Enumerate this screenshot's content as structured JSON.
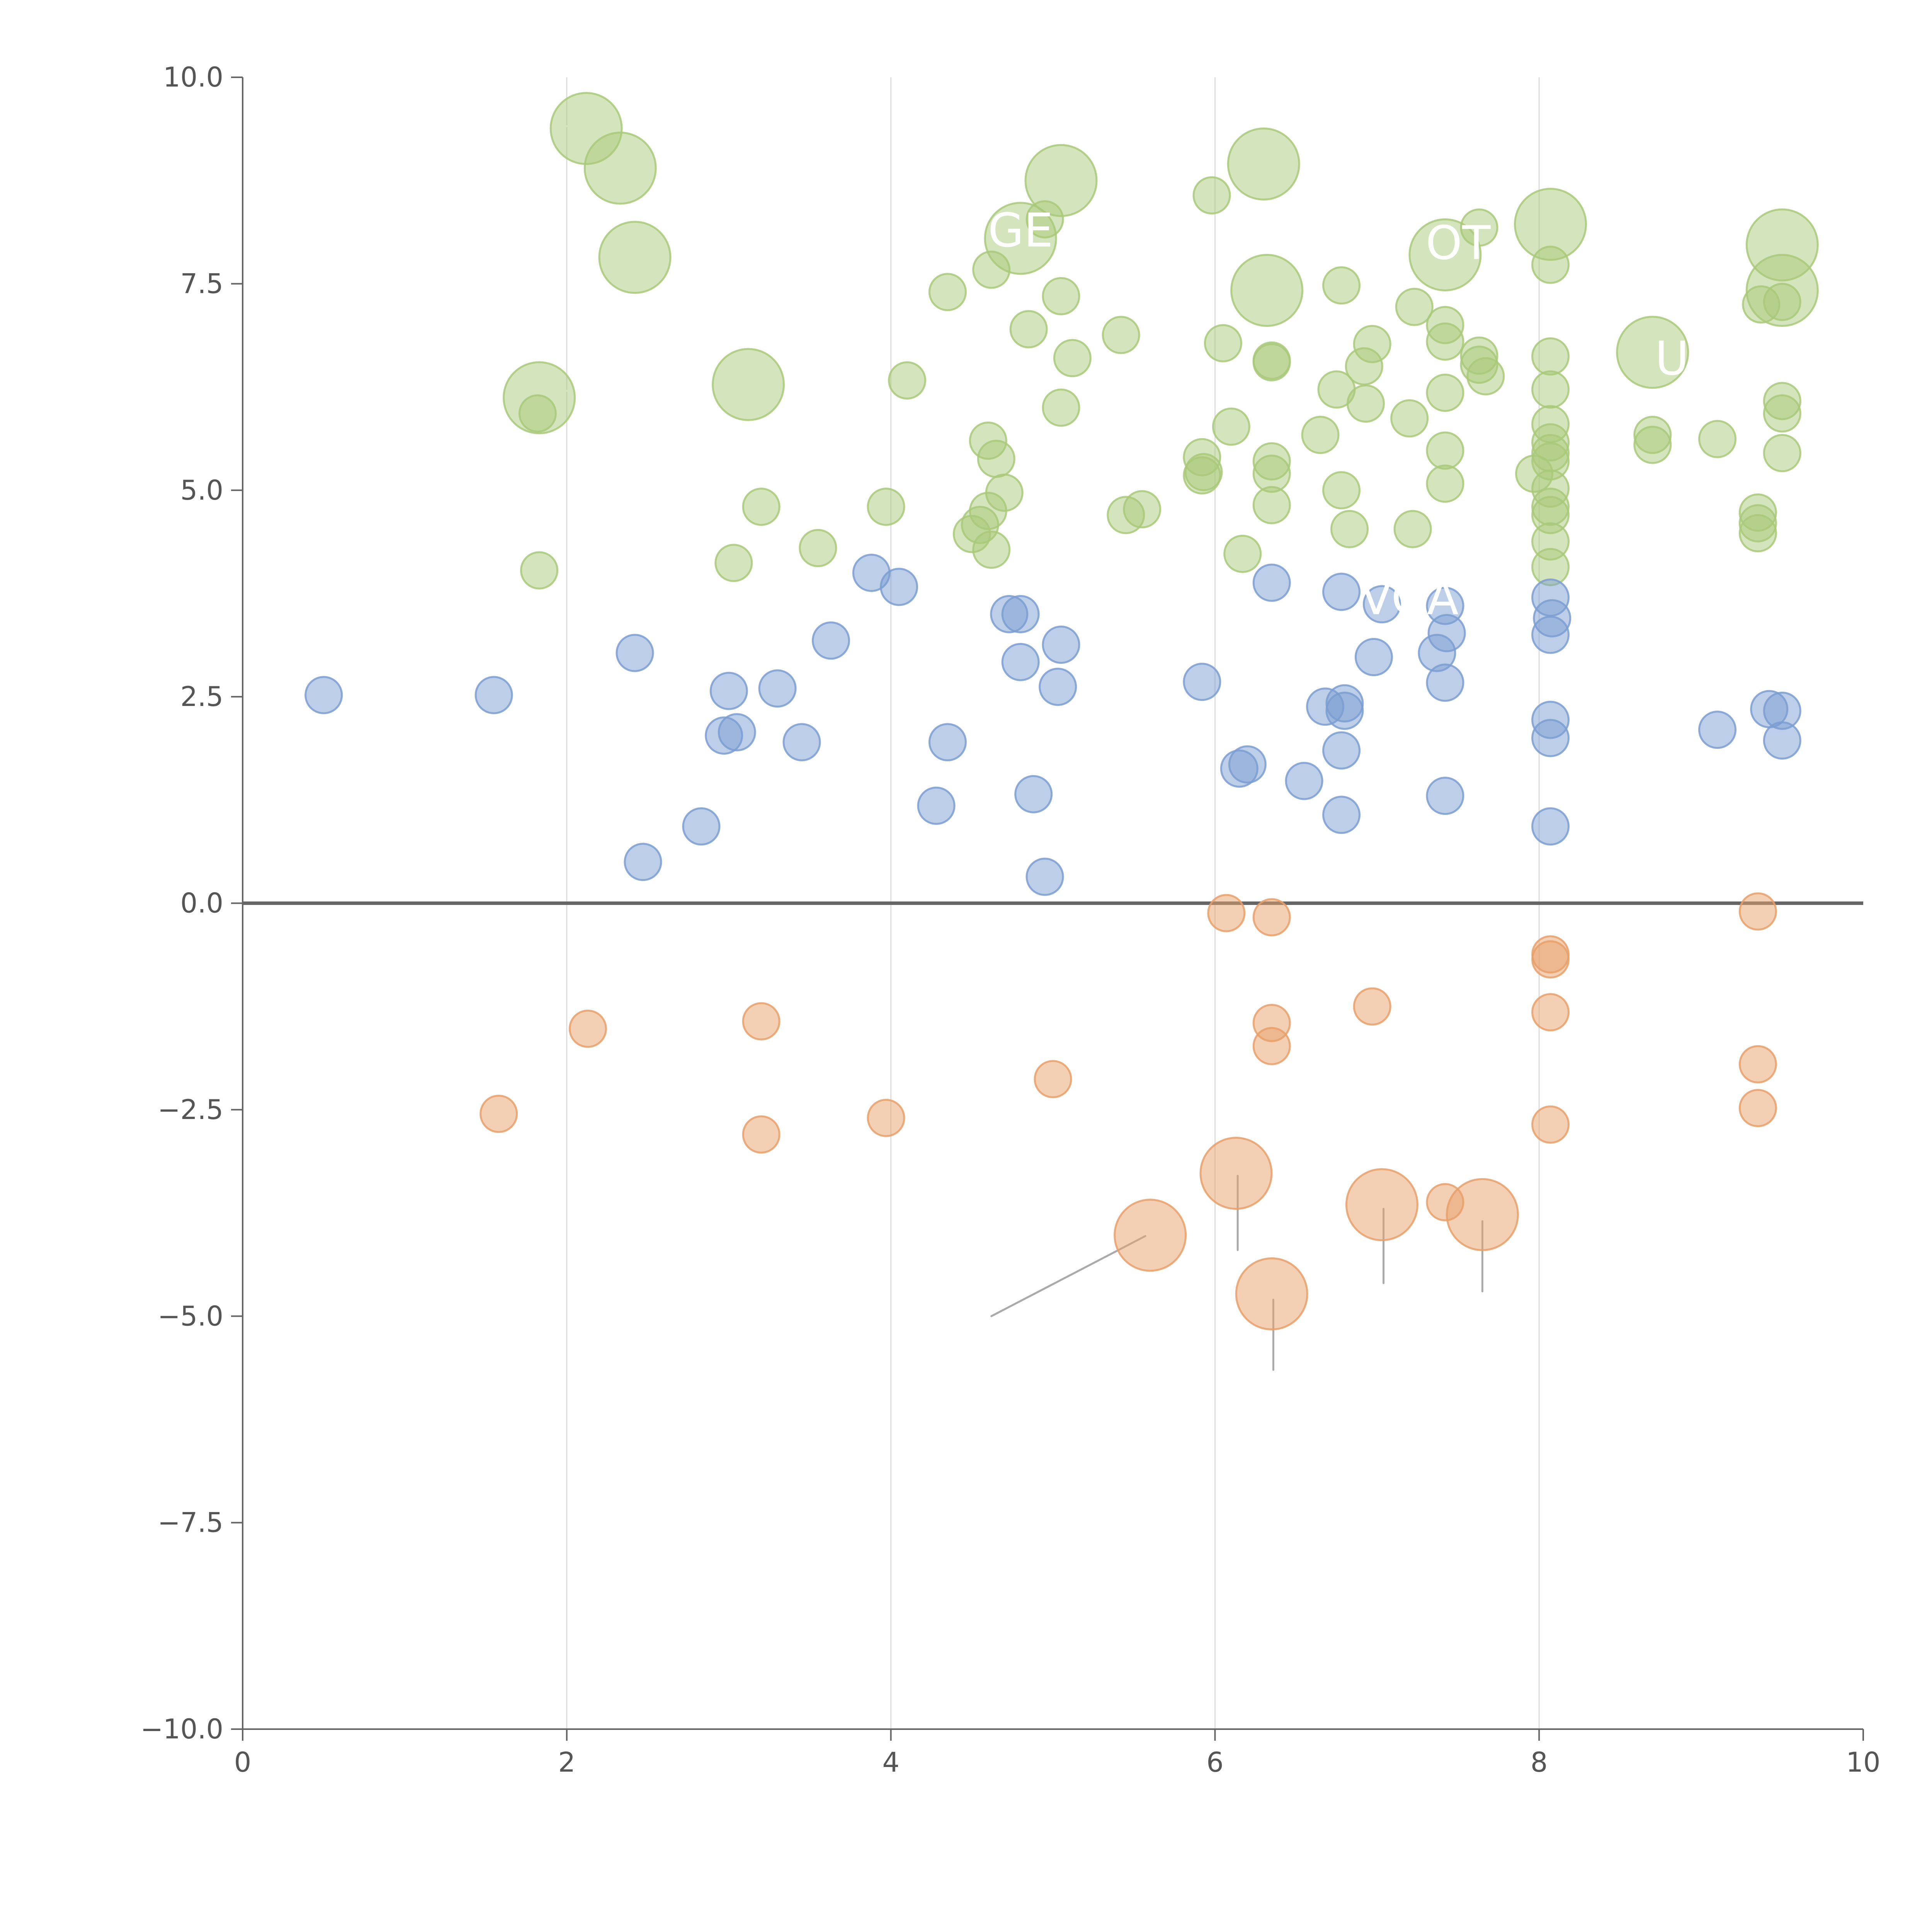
{
  "chart_data": {
    "type": "scatter",
    "title": "",
    "xlabel": "",
    "ylabel": "",
    "xlim": [
      0,
      10
    ],
    "ylim": [
      -10,
      10
    ],
    "x_ticks": [
      0,
      2,
      4,
      6,
      8,
      10
    ],
    "x_tick_labels": [
      "0",
      "2",
      "4",
      "6",
      "8",
      "10"
    ],
    "y_ticks": [
      -10,
      -7.5,
      -5,
      -2.5,
      0,
      2.5,
      5,
      7.5,
      10
    ],
    "y_tick_labels": [
      "−10.0",
      "−7.5",
      "−5.0",
      "−2.5",
      "0.0",
      "2.5",
      "5.0",
      "7.5",
      "10.0"
    ],
    "vertical_gridlines": [
      2,
      4,
      6,
      8
    ],
    "zero_line": 0,
    "colors": {
      "green": "#a9c97a",
      "blue": "#7b9dd1",
      "orange": "#e8a06a",
      "axis": "#666666",
      "grid": "#dddddd",
      "leader": "#aaaaaa",
      "label": "#ffffff"
    },
    "series": [
      {
        "name": "green",
        "color": "#a9c97a",
        "points": [
          {
            "x": 2.12,
            "y": 9.38,
            "size": 3
          },
          {
            "x": 2.33,
            "y": 8.9,
            "size": 3
          },
          {
            "x": 2.42,
            "y": 7.82,
            "size": 3
          },
          {
            "x": 1.83,
            "y": 6.12,
            "size": 3
          },
          {
            "x": 1.82,
            "y": 5.93,
            "size": 1
          },
          {
            "x": 1.83,
            "y": 4.03,
            "size": 1
          },
          {
            "x": 3.12,
            "y": 6.28,
            "size": 3
          },
          {
            "x": 3.2,
            "y": 4.8,
            "size": 1
          },
          {
            "x": 3.03,
            "y": 4.12,
            "size": 1
          },
          {
            "x": 3.55,
            "y": 4.3,
            "size": 1
          },
          {
            "x": 3.97,
            "y": 4.8,
            "size": 1
          },
          {
            "x": 4.1,
            "y": 6.33,
            "size": 1
          },
          {
            "x": 4.35,
            "y": 7.4,
            "size": 1
          },
          {
            "x": 4.62,
            "y": 7.67,
            "size": 1
          },
          {
            "x": 4.8,
            "y": 8.05,
            "size": 3
          },
          {
            "x": 4.95,
            "y": 8.28,
            "size": 1
          },
          {
            "x": 5.05,
            "y": 8.75,
            "size": 3
          },
          {
            "x": 5.05,
            "y": 7.35,
            "size": 1
          },
          {
            "x": 4.85,
            "y": 6.95,
            "size": 1
          },
          {
            "x": 5.12,
            "y": 6.6,
            "size": 1
          },
          {
            "x": 5.05,
            "y": 6.0,
            "size": 1
          },
          {
            "x": 5.42,
            "y": 6.88,
            "size": 1
          },
          {
            "x": 4.6,
            "y": 5.6,
            "size": 1
          },
          {
            "x": 4.65,
            "y": 5.38,
            "size": 1
          },
          {
            "x": 4.7,
            "y": 4.97,
            "size": 1
          },
          {
            "x": 4.6,
            "y": 4.75,
            "size": 1
          },
          {
            "x": 4.55,
            "y": 4.58,
            "size": 1
          },
          {
            "x": 4.5,
            "y": 4.47,
            "size": 1
          },
          {
            "x": 4.62,
            "y": 4.28,
            "size": 1
          },
          {
            "x": 5.45,
            "y": 4.7,
            "size": 1
          },
          {
            "x": 5.55,
            "y": 4.77,
            "size": 1
          },
          {
            "x": 5.98,
            "y": 8.57,
            "size": 1
          },
          {
            "x": 6.3,
            "y": 8.95,
            "size": 3
          },
          {
            "x": 6.32,
            "y": 7.42,
            "size": 3
          },
          {
            "x": 6.05,
            "y": 6.78,
            "size": 1
          },
          {
            "x": 6.1,
            "y": 5.77,
            "size": 1
          },
          {
            "x": 5.92,
            "y": 5.4,
            "size": 1
          },
          {
            "x": 5.92,
            "y": 5.18,
            "size": 1
          },
          {
            "x": 5.93,
            "y": 5.22,
            "size": 1
          },
          {
            "x": 6.35,
            "y": 6.55,
            "size": 1
          },
          {
            "x": 6.35,
            "y": 6.57,
            "size": 1
          },
          {
            "x": 6.35,
            "y": 5.35,
            "size": 1
          },
          {
            "x": 6.35,
            "y": 5.2,
            "size": 1
          },
          {
            "x": 6.35,
            "y": 4.82,
            "size": 1
          },
          {
            "x": 6.17,
            "y": 4.23,
            "size": 1
          },
          {
            "x": 6.78,
            "y": 7.48,
            "size": 1
          },
          {
            "x": 6.75,
            "y": 6.22,
            "size": 1
          },
          {
            "x": 6.92,
            "y": 6.5,
            "size": 1
          },
          {
            "x": 6.97,
            "y": 6.77,
            "size": 1
          },
          {
            "x": 6.93,
            "y": 6.05,
            "size": 1
          },
          {
            "x": 6.65,
            "y": 5.67,
            "size": 1
          },
          {
            "x": 6.78,
            "y": 5.0,
            "size": 1
          },
          {
            "x": 6.83,
            "y": 4.53,
            "size": 1
          },
          {
            "x": 7.23,
            "y": 7.22,
            "size": 1
          },
          {
            "x": 7.42,
            "y": 7.85,
            "size": 3
          },
          {
            "x": 7.42,
            "y": 7.0,
            "size": 1
          },
          {
            "x": 7.42,
            "y": 6.8,
            "size": 1
          },
          {
            "x": 7.42,
            "y": 6.18,
            "size": 1
          },
          {
            "x": 7.2,
            "y": 5.87,
            "size": 1
          },
          {
            "x": 7.42,
            "y": 5.48,
            "size": 1
          },
          {
            "x": 7.42,
            "y": 5.08,
            "size": 1
          },
          {
            "x": 7.22,
            "y": 4.53,
            "size": 1
          },
          {
            "x": 7.63,
            "y": 8.18,
            "size": 1
          },
          {
            "x": 7.63,
            "y": 6.63,
            "size": 1
          },
          {
            "x": 7.63,
            "y": 6.52,
            "size": 1
          },
          {
            "x": 7.67,
            "y": 6.38,
            "size": 1
          },
          {
            "x": 8.07,
            "y": 8.22,
            "size": 3
          },
          {
            "x": 8.07,
            "y": 7.73,
            "size": 1
          },
          {
            "x": 8.07,
            "y": 6.62,
            "size": 1
          },
          {
            "x": 8.07,
            "y": 6.22,
            "size": 1
          },
          {
            "x": 8.07,
            "y": 5.8,
            "size": 1
          },
          {
            "x": 8.07,
            "y": 5.58,
            "size": 1
          },
          {
            "x": 8.07,
            "y": 5.45,
            "size": 1
          },
          {
            "x": 8.07,
            "y": 5.35,
            "size": 1
          },
          {
            "x": 7.97,
            "y": 5.2,
            "size": 1
          },
          {
            "x": 8.07,
            "y": 5.02,
            "size": 1
          },
          {
            "x": 8.07,
            "y": 4.8,
            "size": 1
          },
          {
            "x": 8.07,
            "y": 4.7,
            "size": 1
          },
          {
            "x": 8.07,
            "y": 4.38,
            "size": 1
          },
          {
            "x": 8.07,
            "y": 4.07,
            "size": 1
          },
          {
            "x": 8.7,
            "y": 6.67,
            "size": 3
          },
          {
            "x": 8.7,
            "y": 5.67,
            "size": 1
          },
          {
            "x": 8.7,
            "y": 5.55,
            "size": 1
          },
          {
            "x": 9.1,
            "y": 5.62,
            "size": 1
          },
          {
            "x": 9.37,
            "y": 7.25,
            "size": 1
          },
          {
            "x": 9.5,
            "y": 7.97,
            "size": 3
          },
          {
            "x": 9.5,
            "y": 7.42,
            "size": 3
          },
          {
            "x": 9.5,
            "y": 7.28,
            "size": 1
          },
          {
            "x": 9.5,
            "y": 6.08,
            "size": 1
          },
          {
            "x": 9.5,
            "y": 5.93,
            "size": 1
          },
          {
            "x": 9.5,
            "y": 5.45,
            "size": 1
          },
          {
            "x": 9.35,
            "y": 4.73,
            "size": 1
          },
          {
            "x": 9.35,
            "y": 4.6,
            "size": 1
          },
          {
            "x": 9.35,
            "y": 4.48,
            "size": 1
          }
        ]
      },
      {
        "name": "blue",
        "color": "#7b9dd1",
        "points": [
          {
            "x": 0.5,
            "y": 2.52,
            "size": 1
          },
          {
            "x": 1.55,
            "y": 2.52,
            "size": 1
          },
          {
            "x": 2.42,
            "y": 3.03,
            "size": 1
          },
          {
            "x": 2.47,
            "y": 0.5,
            "size": 1
          },
          {
            "x": 2.83,
            "y": 0.93,
            "size": 1
          },
          {
            "x": 3.0,
            "y": 2.57,
            "size": 1
          },
          {
            "x": 2.97,
            "y": 2.03,
            "size": 1
          },
          {
            "x": 3.05,
            "y": 2.07,
            "size": 1
          },
          {
            "x": 3.3,
            "y": 2.6,
            "size": 1
          },
          {
            "x": 3.45,
            "y": 1.95,
            "size": 1
          },
          {
            "x": 3.63,
            "y": 3.18,
            "size": 1
          },
          {
            "x": 3.88,
            "y": 4.0,
            "size": 1
          },
          {
            "x": 4.05,
            "y": 3.83,
            "size": 1
          },
          {
            "x": 4.28,
            "y": 1.18,
            "size": 1
          },
          {
            "x": 4.35,
            "y": 1.95,
            "size": 1
          },
          {
            "x": 4.73,
            "y": 3.5,
            "size": 1
          },
          {
            "x": 4.8,
            "y": 3.5,
            "size": 1
          },
          {
            "x": 4.8,
            "y": 2.92,
            "size": 1
          },
          {
            "x": 4.88,
            "y": 1.32,
            "size": 1
          },
          {
            "x": 4.95,
            "y": 0.32,
            "size": 1
          },
          {
            "x": 5.05,
            "y": 3.13,
            "size": 1
          },
          {
            "x": 5.03,
            "y": 2.62,
            "size": 1
          },
          {
            "x": 5.92,
            "y": 2.68,
            "size": 1
          },
          {
            "x": 6.15,
            "y": 1.63,
            "size": 1
          },
          {
            "x": 6.2,
            "y": 1.68,
            "size": 1
          },
          {
            "x": 6.35,
            "y": 3.88,
            "size": 1
          },
          {
            "x": 6.55,
            "y": 1.48,
            "size": 1
          },
          {
            "x": 6.78,
            "y": 3.77,
            "size": 1
          },
          {
            "x": 6.68,
            "y": 2.38,
            "size": 1
          },
          {
            "x": 6.8,
            "y": 2.42,
            "size": 1
          },
          {
            "x": 6.8,
            "y": 2.33,
            "size": 1
          },
          {
            "x": 6.78,
            "y": 1.85,
            "size": 1
          },
          {
            "x": 6.78,
            "y": 1.07,
            "size": 1
          },
          {
            "x": 7.03,
            "y": 3.62,
            "size": 1
          },
          {
            "x": 6.98,
            "y": 2.98,
            "size": 1
          },
          {
            "x": 7.42,
            "y": 3.6,
            "size": 1
          },
          {
            "x": 7.43,
            "y": 3.27,
            "size": 1
          },
          {
            "x": 7.37,
            "y": 3.03,
            "size": 1
          },
          {
            "x": 7.42,
            "y": 2.67,
            "size": 1
          },
          {
            "x": 7.42,
            "y": 1.3,
            "size": 1
          },
          {
            "x": 8.07,
            "y": 3.7,
            "size": 1
          },
          {
            "x": 8.08,
            "y": 3.45,
            "size": 1
          },
          {
            "x": 8.07,
            "y": 3.25,
            "size": 1
          },
          {
            "x": 8.07,
            "y": 2.22,
            "size": 1
          },
          {
            "x": 8.07,
            "y": 2.0,
            "size": 1
          },
          {
            "x": 8.07,
            "y": 0.93,
            "size": 1
          },
          {
            "x": 9.1,
            "y": 2.1,
            "size": 1
          },
          {
            "x": 9.42,
            "y": 2.35,
            "size": 1
          },
          {
            "x": 9.5,
            "y": 2.33,
            "size": 1
          },
          {
            "x": 9.5,
            "y": 1.97,
            "size": 1
          }
        ]
      },
      {
        "name": "orange",
        "color": "#e8a06a",
        "points": [
          {
            "x": 1.58,
            "y": -2.55,
            "size": 1
          },
          {
            "x": 2.13,
            "y": -1.52,
            "size": 1
          },
          {
            "x": 3.2,
            "y": -1.43,
            "size": 1
          },
          {
            "x": 3.2,
            "y": -2.8,
            "size": 1
          },
          {
            "x": 3.97,
            "y": -2.6,
            "size": 1
          },
          {
            "x": 5.0,
            "y": -2.13,
            "size": 1
          },
          {
            "x": 5.6,
            "y": -4.02,
            "size": 3
          },
          {
            "x": 6.07,
            "y": -0.12,
            "size": 1
          },
          {
            "x": 6.13,
            "y": -3.27,
            "size": 3
          },
          {
            "x": 6.35,
            "y": -0.17,
            "size": 1
          },
          {
            "x": 6.35,
            "y": -1.45,
            "size": 1
          },
          {
            "x": 6.35,
            "y": -1.73,
            "size": 1
          },
          {
            "x": 6.35,
            "y": -4.73,
            "size": 3
          },
          {
            "x": 6.97,
            "y": -1.25,
            "size": 1
          },
          {
            "x": 7.03,
            "y": -3.65,
            "size": 3
          },
          {
            "x": 7.42,
            "y": -3.62,
            "size": 1
          },
          {
            "x": 7.65,
            "y": -3.77,
            "size": 3
          },
          {
            "x": 8.07,
            "y": -0.62,
            "size": 1
          },
          {
            "x": 8.07,
            "y": -0.68,
            "size": 1
          },
          {
            "x": 8.07,
            "y": -1.32,
            "size": 1
          },
          {
            "x": 8.07,
            "y": -2.68,
            "size": 1
          },
          {
            "x": 9.35,
            "y": -0.1,
            "size": 1
          },
          {
            "x": 9.35,
            "y": -1.95,
            "size": 1
          },
          {
            "x": 9.35,
            "y": -2.48,
            "size": 1
          }
        ]
      }
    ],
    "leader_lines": [
      {
        "x1": 4.62,
        "y1": -5.0,
        "x2": 5.57,
        "y2": -4.03,
        "color": "#aaaaaa"
      },
      {
        "x1": 6.14,
        "y1": -3.3,
        "x2": 6.14,
        "y2": -4.2,
        "color": "#aaaaaa"
      },
      {
        "x1": 6.36,
        "y1": -4.8,
        "x2": 6.36,
        "y2": -5.65,
        "color": "#aaaaaa"
      },
      {
        "x1": 7.04,
        "y1": -3.7,
        "x2": 7.04,
        "y2": -4.6,
        "color": "#aaaaaa"
      },
      {
        "x1": 7.65,
        "y1": -3.85,
        "x2": 7.65,
        "y2": -4.7,
        "color": "#aaaaaa"
      },
      {
        "x1": 2.08,
        "y1": 9.4,
        "x2": 1.9,
        "y2": 9.42,
        "color": "#ffffff"
      },
      {
        "x1": 2.45,
        "y1": 7.85,
        "x2": 2.63,
        "y2": 7.88,
        "color": "#ffffff"
      },
      {
        "x1": 1.86,
        "y1": 6.16,
        "x2": 2.05,
        "y2": 6.22,
        "color": "#ffffff"
      },
      {
        "x1": 5.07,
        "y1": 8.78,
        "x2": 5.2,
        "y2": 9.0,
        "color": "#ffffff"
      },
      {
        "x1": 6.33,
        "y1": 9.0,
        "x2": 6.5,
        "y2": 9.2,
        "color": "#ffffff"
      },
      {
        "x1": 6.35,
        "y1": 7.35,
        "x2": 6.45,
        "y2": 6.9,
        "color": "#ffffff"
      },
      {
        "x1": 6.7,
        "y1": 5.8,
        "x2": 7.0,
        "y2": 4.4,
        "color": "#ffffff"
      },
      {
        "x1": 8.08,
        "y1": 8.25,
        "x2": 8.1,
        "y2": 8.55,
        "color": "#ffffff"
      },
      {
        "x1": 9.48,
        "y1": 8.0,
        "x2": 9.15,
        "y2": 7.85,
        "color": "#ffffff"
      },
      {
        "x1": 7.45,
        "y1": 7.9,
        "x2": 7.0,
        "y2": 6.95,
        "color": "#ffffff"
      }
    ],
    "annotations": [
      {
        "text": "GE",
        "x": 4.8,
        "y": 7.95,
        "color": "#ffffff"
      },
      {
        "text": "OT",
        "x": 7.5,
        "y": 7.8,
        "color": "#ffffff"
      },
      {
        "text": "U",
        "x": 8.82,
        "y": 6.4,
        "color": "#ffffff"
      },
      {
        "text": "VOA",
        "x": 7.2,
        "y": 3.5,
        "color": "#ffffff"
      }
    ]
  }
}
